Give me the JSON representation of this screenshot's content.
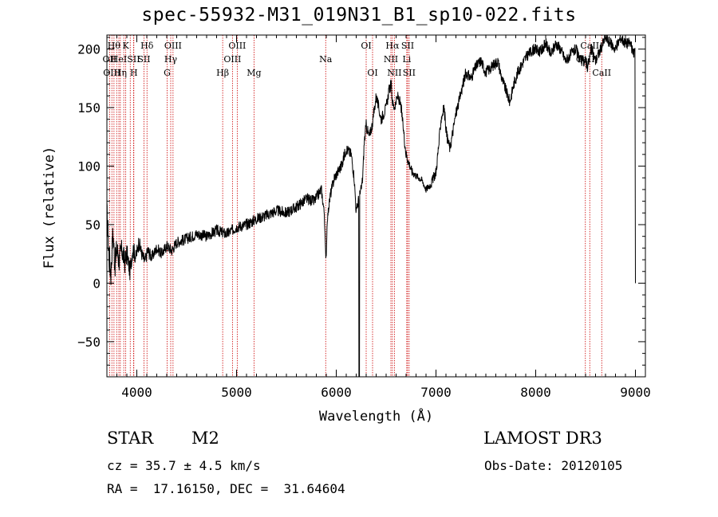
{
  "title": "spec-55932-M31_019N31_B1_sp10-022.fits",
  "footer": {
    "object_class": "STAR",
    "subclass": "M2",
    "survey": "LAMOST DR3",
    "cz": "cz = 35.7 ± 4.5 km/s",
    "obs_date": "Obs-Date: 20120105",
    "coords": "RA =  17.16150, DEC =  31.64604"
  },
  "chart_data": {
    "type": "line",
    "title": "spec-55932-M31_019N31_B1_sp10-022.fits",
    "xlabel": "Wavelength (Å)",
    "ylabel": "Flux (relative)",
    "xlim": [
      3700,
      9100
    ],
    "ylim": [
      -80,
      212
    ],
    "xticks": [
      4000,
      5000,
      6000,
      7000,
      8000,
      9000
    ],
    "yticks": [
      -50,
      0,
      50,
      100,
      150,
      200
    ],
    "line_color": "#000000",
    "marker_color": "#cc0000",
    "series": [
      {
        "x": [
          3700,
          3720,
          3740,
          3760,
          3780,
          3800,
          3820,
          3850,
          3880,
          3900,
          3930,
          3960,
          3990,
          4020,
          4050,
          4080,
          4110,
          4150,
          4200,
          4250,
          4300,
          4350,
          4400,
          4500,
          4600,
          4700,
          4800,
          4900,
          5000,
          5100,
          5200,
          5300,
          5400,
          5500,
          5600,
          5700,
          5780,
          5850,
          5880,
          5895,
          5900,
          5910,
          5940,
          5980,
          6050,
          6100,
          6150,
          6180,
          6200,
          6220,
          6250,
          6265,
          6280,
          6300,
          6330,
          6360,
          6400,
          6450,
          6500,
          6530,
          6550,
          6563,
          6580,
          6620,
          6650,
          6700,
          6740,
          6760,
          6800,
          6830,
          6860,
          6900,
          6950,
          7000,
          7030,
          7050,
          7080,
          7110,
          7140,
          7170,
          7200,
          7230,
          7270,
          7300,
          7350,
          7400,
          7450,
          7500,
          7560,
          7620,
          7660,
          7700,
          7740,
          7780,
          7820,
          7850,
          7880,
          7920,
          7980,
          8050,
          8100,
          8150,
          8200,
          8250,
          8300,
          8350,
          8400,
          8450,
          8500,
          8520,
          8560,
          8600,
          8650,
          8700,
          8750,
          8800,
          8850,
          8900,
          8950,
          8980,
          8995,
          9000
        ],
        "y": [
          60,
          25,
          8,
          45,
          15,
          30,
          20,
          28,
          18,
          26,
          10,
          30,
          22,
          35,
          25,
          18,
          28,
          22,
          30,
          25,
          32,
          28,
          35,
          38,
          42,
          40,
          45,
          42,
          48,
          50,
          55,
          58,
          62,
          60,
          65,
          72,
          70,
          80,
          60,
          20,
          25,
          55,
          75,
          90,
          100,
          115,
          110,
          90,
          60,
          70,
          80,
          90,
          120,
          135,
          125,
          135,
          160,
          140,
          150,
          165,
          170,
          155,
          150,
          160,
          150,
          110,
          100,
          95,
          92,
          90,
          88,
          80,
          85,
          95,
          120,
          140,
          150,
          125,
          115,
          130,
          145,
          155,
          170,
          180,
          175,
          185,
          190,
          180,
          185,
          190,
          175,
          165,
          155,
          170,
          180,
          185,
          190,
          195,
          200,
          198,
          205,
          195,
          205,
          200,
          190,
          195,
          200,
          190,
          190,
          185,
          200,
          190,
          200,
          210,
          205,
          200,
          210,
          205,
          205,
          195,
          200,
          0
        ],
        "noise": [
          12,
          16,
          12,
          10,
          12,
          12,
          12,
          10,
          10,
          9,
          8,
          8,
          7,
          7,
          6,
          6,
          6,
          5,
          5,
          5,
          5,
          5,
          5,
          5,
          5,
          5,
          5,
          5,
          5,
          5,
          5,
          5,
          5,
          5,
          5,
          5,
          5,
          5,
          3,
          2,
          2,
          3,
          5,
          5,
          5,
          5,
          5,
          5,
          5,
          5,
          5,
          5,
          5,
          5,
          5,
          5,
          5,
          5,
          5,
          5,
          5,
          4,
          4,
          5,
          5,
          5,
          4,
          4,
          3,
          3,
          3,
          3,
          4,
          5,
          5,
          5,
          5,
          5,
          5,
          5,
          5,
          5,
          5,
          5,
          5,
          5,
          5,
          5,
          5,
          5,
          5,
          5,
          5,
          5,
          5,
          5,
          5,
          5,
          5,
          5,
          5,
          5,
          5,
          5,
          5,
          5,
          5,
          5,
          5,
          5,
          5,
          5,
          5,
          5,
          5,
          5,
          5,
          5,
          5,
          5,
          3,
          0
        ],
        "spikes": [
          {
            "x": 6230,
            "y": -80
          }
        ]
      }
    ],
    "lines": [
      {
        "x": 3727,
        "label": "OII",
        "row": 1
      },
      {
        "x": 3750,
        "label": "OIII",
        "row": 2
      },
      {
        "x": 3771,
        "label": "Hθ",
        "row": 0
      },
      {
        "x": 3798,
        "label": "",
        "row": 0
      },
      {
        "x": 3820,
        "label": "HeI",
        "row": 1
      },
      {
        "x": 3835,
        "label": "Hη",
        "row": 2
      },
      {
        "x": 3869,
        "label": "",
        "row": 0
      },
      {
        "x": 3889,
        "label": "K",
        "row": 0
      },
      {
        "x": 3934,
        "label": "",
        "row": 0
      },
      {
        "x": 3968,
        "label": "SII",
        "row": 1
      },
      {
        "x": 3970,
        "label": "H",
        "row": 2
      },
      {
        "x": 4072,
        "label": "SII",
        "row": 1
      },
      {
        "x": 4102,
        "label": "Hδ",
        "row": 0
      },
      {
        "x": 4304,
        "label": "G",
        "row": 2
      },
      {
        "x": 4340,
        "label": "Hγ",
        "row": 1
      },
      {
        "x": 4363,
        "label": "OIII",
        "row": 0
      },
      {
        "x": 4861,
        "label": "Hβ",
        "row": 2
      },
      {
        "x": 4959,
        "label": "OIII",
        "row": 1
      },
      {
        "x": 5007,
        "label": "OIII",
        "row": 0
      },
      {
        "x": 5175,
        "label": "Mg",
        "row": 2
      },
      {
        "x": 5894,
        "label": "Na",
        "row": 1
      },
      {
        "x": 6300,
        "label": "OI",
        "row": 0
      },
      {
        "x": 6364,
        "label": "OI",
        "row": 2
      },
      {
        "x": 6548,
        "label": "NII",
        "row": 1
      },
      {
        "x": 6563,
        "label": "Hα",
        "row": 0
      },
      {
        "x": 6583,
        "label": "NII",
        "row": 2
      },
      {
        "x": 6707,
        "label": "Li",
        "row": 1
      },
      {
        "x": 6716,
        "label": "SII",
        "row": 0
      },
      {
        "x": 6731,
        "label": "SII",
        "row": 2
      },
      {
        "x": 8498,
        "label": "CaII",
        "row": 1
      },
      {
        "x": 8542,
        "label": "CaII",
        "row": 0
      },
      {
        "x": 8662,
        "label": "CaII",
        "row": 2
      }
    ]
  }
}
